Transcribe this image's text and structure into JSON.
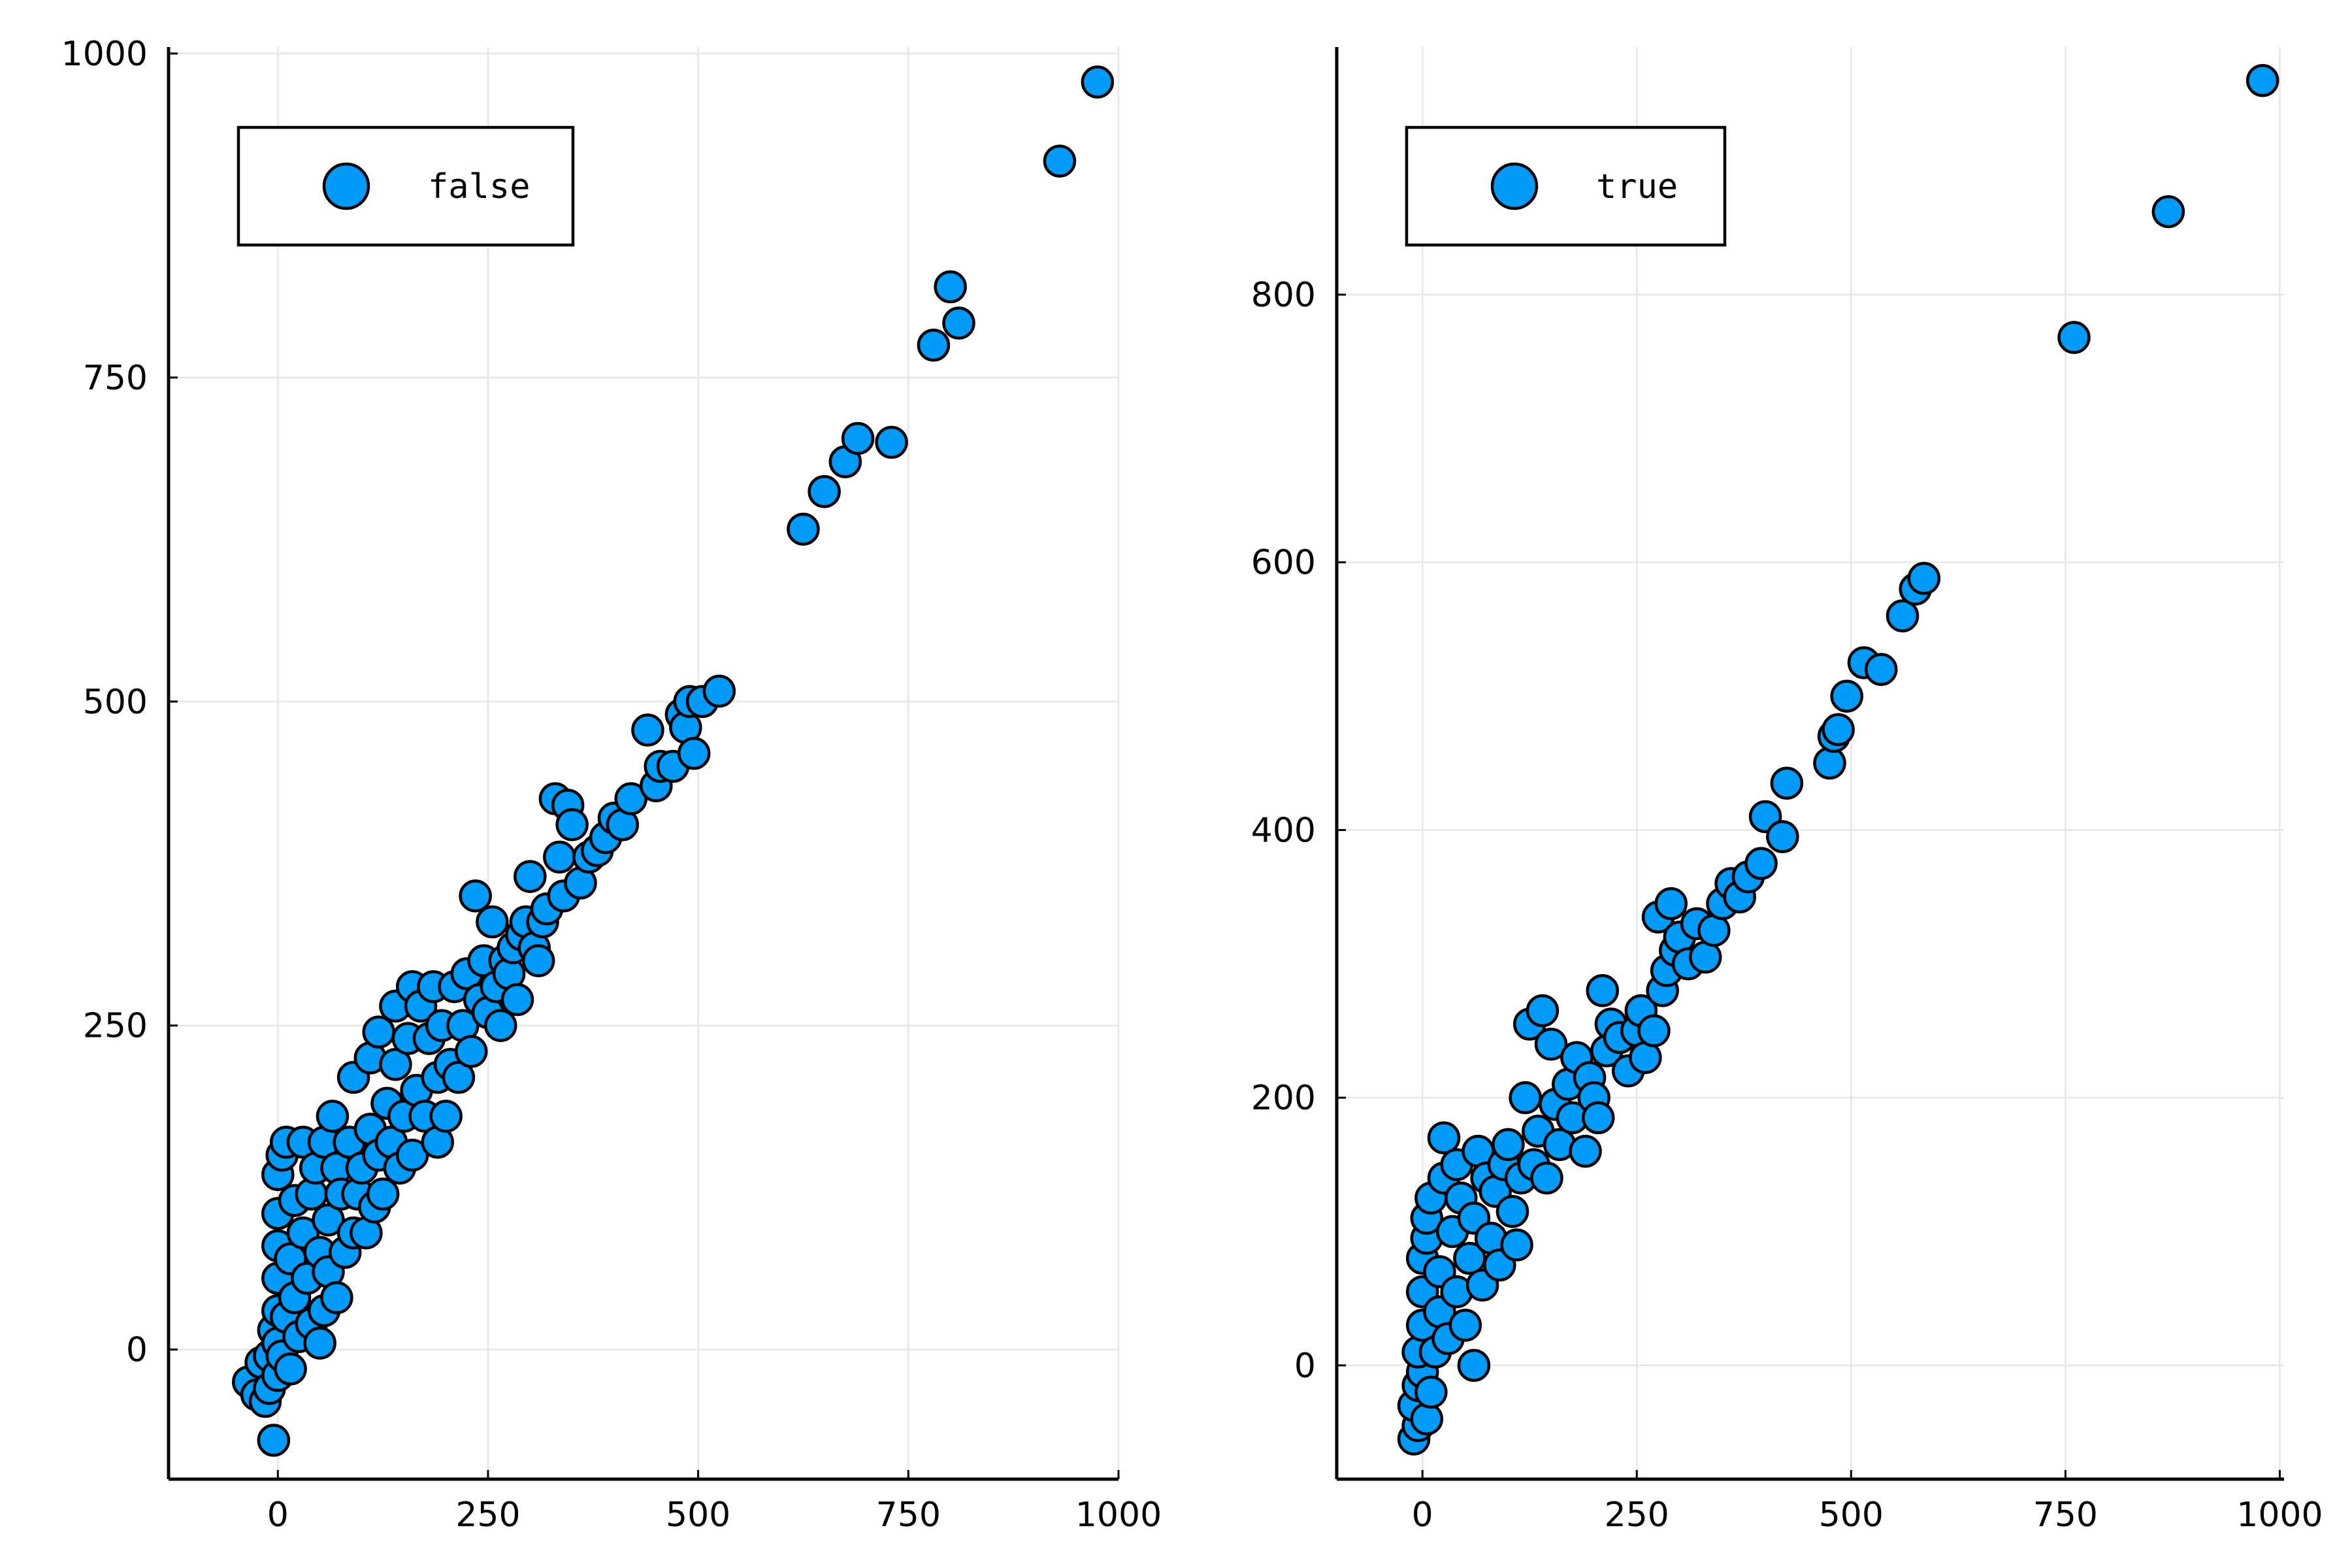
{
  "chart_data": [
    {
      "type": "scatter",
      "xlim": [
        -130,
        1000
      ],
      "ylim": [
        -100,
        1005
      ],
      "xticks": [
        0,
        250,
        500,
        750,
        1000
      ],
      "yticks": [
        0,
        250,
        500,
        750,
        1000
      ],
      "xtick_labels": [
        "0",
        "250",
        "500",
        "750",
        "1000"
      ],
      "ytick_labels": [
        "0",
        "250",
        "500",
        "750",
        "1000"
      ],
      "grid": true,
      "legend_position": "top-left",
      "series": [
        {
          "name": "false",
          "color": "#009af9",
          "points": [
            [
              -35,
              -25
            ],
            [
              -25,
              -35
            ],
            [
              -20,
              -10
            ],
            [
              -15,
              -40
            ],
            [
              -10,
              -30
            ],
            [
              -5,
              -70
            ],
            [
              -10,
              -5
            ],
            [
              -5,
              15
            ],
            [
              0,
              -20
            ],
            [
              0,
              5
            ],
            [
              0,
              30
            ],
            [
              0,
              55
            ],
            [
              0,
              80
            ],
            [
              0,
              105
            ],
            [
              0,
              135
            ],
            [
              5,
              -5
            ],
            [
              5,
              150
            ],
            [
              10,
              160
            ],
            [
              10,
              25
            ],
            [
              15,
              70
            ],
            [
              15,
              -15
            ],
            [
              20,
              40
            ],
            [
              20,
              115
            ],
            [
              25,
              10
            ],
            [
              30,
              160
            ],
            [
              30,
              90
            ],
            [
              35,
              55
            ],
            [
              40,
              20
            ],
            [
              40,
              120
            ],
            [
              45,
              140
            ],
            [
              50,
              5
            ],
            [
              50,
              75
            ],
            [
              55,
              30
            ],
            [
              55,
              160
            ],
            [
              60,
              100
            ],
            [
              60,
              60
            ],
            [
              65,
              180
            ],
            [
              70,
              40
            ],
            [
              70,
              140
            ],
            [
              75,
              120
            ],
            [
              80,
              75
            ],
            [
              85,
              160
            ],
            [
              90,
              90
            ],
            [
              90,
              210
            ],
            [
              95,
              120
            ],
            [
              100,
              140
            ],
            [
              105,
              90
            ],
            [
              110,
              170
            ],
            [
              110,
              225
            ],
            [
              115,
              110
            ],
            [
              120,
              245
            ],
            [
              120,
              150
            ],
            [
              125,
              120
            ],
            [
              130,
              190
            ],
            [
              135,
              160
            ],
            [
              140,
              220
            ],
            [
              140,
              265
            ],
            [
              145,
              140
            ],
            [
              150,
              180
            ],
            [
              155,
              240
            ],
            [
              160,
              150
            ],
            [
              160,
              280
            ],
            [
              165,
              200
            ],
            [
              170,
              265
            ],
            [
              175,
              180
            ],
            [
              180,
              240
            ],
            [
              185,
              280
            ],
            [
              190,
              210
            ],
            [
              190,
              160
            ],
            [
              195,
              250
            ],
            [
              200,
              180
            ],
            [
              205,
              220
            ],
            [
              210,
              280
            ],
            [
              215,
              210
            ],
            [
              220,
              250
            ],
            [
              225,
              290
            ],
            [
              230,
              230
            ],
            [
              235,
              350
            ],
            [
              240,
              270
            ],
            [
              245,
              300
            ],
            [
              250,
              260
            ],
            [
              255,
              330
            ],
            [
              260,
              280
            ],
            [
              265,
              250
            ],
            [
              270,
              300
            ],
            [
              275,
              290
            ],
            [
              280,
              310
            ],
            [
              285,
              270
            ],
            [
              290,
              320
            ],
            [
              295,
              330
            ],
            [
              300,
              365
            ],
            [
              305,
              310
            ],
            [
              310,
              300
            ],
            [
              315,
              330
            ],
            [
              320,
              340
            ],
            [
              330,
              425
            ],
            [
              335,
              380
            ],
            [
              340,
              350
            ],
            [
              345,
              420
            ],
            [
              350,
              405
            ],
            [
              360,
              360
            ],
            [
              370,
              380
            ],
            [
              380,
              385
            ],
            [
              390,
              395
            ],
            [
              400,
              410
            ],
            [
              410,
              405
            ],
            [
              420,
              425
            ],
            [
              440,
              478
            ],
            [
              450,
              435
            ],
            [
              455,
              450
            ],
            [
              470,
              450
            ],
            [
              480,
              490
            ],
            [
              485,
              480
            ],
            [
              490,
              500
            ],
            [
              495,
              460
            ],
            [
              505,
              500
            ],
            [
              525,
              508
            ],
            [
              625,
              633
            ],
            [
              650,
              662
            ],
            [
              675,
              685
            ],
            [
              690,
              703
            ],
            [
              730,
              700
            ],
            [
              780,
              775
            ],
            [
              800,
              820
            ],
            [
              810,
              792
            ],
            [
              930,
              917
            ],
            [
              975,
              978
            ]
          ]
        }
      ]
    },
    {
      "type": "scatter",
      "xlim": [
        -100,
        1005
      ],
      "ylim": [
        -85,
        985
      ],
      "xticks": [
        0,
        250,
        500,
        750,
        1000
      ],
      "yticks": [
        0,
        200,
        400,
        600,
        800
      ],
      "xtick_labels": [
        "0",
        "250",
        "500",
        "750",
        "1000"
      ],
      "ytick_labels": [
        "0",
        "200",
        "400",
        "600",
        "800"
      ],
      "grid": true,
      "legend_position": "top-left",
      "series": [
        {
          "name": "true",
          "color": "#009af9",
          "points": [
            [
              -10,
              -55
            ],
            [
              -5,
              -45
            ],
            [
              -10,
              -30
            ],
            [
              -5,
              -15
            ],
            [
              0,
              -5
            ],
            [
              -5,
              10
            ],
            [
              0,
              30
            ],
            [
              0,
              55
            ],
            [
              0,
              80
            ],
            [
              5,
              95
            ],
            [
              5,
              110
            ],
            [
              10,
              125
            ],
            [
              5,
              -40
            ],
            [
              10,
              -20
            ],
            [
              15,
              10
            ],
            [
              20,
              40
            ],
            [
              20,
              70
            ],
            [
              25,
              140
            ],
            [
              25,
              170
            ],
            [
              30,
              20
            ],
            [
              35,
              100
            ],
            [
              40,
              55
            ],
            [
              40,
              150
            ],
            [
              45,
              125
            ],
            [
              50,
              30
            ],
            [
              55,
              80
            ],
            [
              60,
              110
            ],
            [
              60,
              0
            ],
            [
              65,
              160
            ],
            [
              70,
              60
            ],
            [
              75,
              140
            ],
            [
              80,
              95
            ],
            [
              85,
              130
            ],
            [
              90,
              75
            ],
            [
              95,
              150
            ],
            [
              100,
              165
            ],
            [
              105,
              115
            ],
            [
              110,
              90
            ],
            [
              115,
              140
            ],
            [
              120,
              200
            ],
            [
              125,
              255
            ],
            [
              130,
              150
            ],
            [
              135,
              175
            ],
            [
              140,
              265
            ],
            [
              145,
              140
            ],
            [
              150,
              240
            ],
            [
              155,
              195
            ],
            [
              160,
              165
            ],
            [
              170,
              210
            ],
            [
              175,
              185
            ],
            [
              180,
              230
            ],
            [
              190,
              160
            ],
            [
              195,
              215
            ],
            [
              200,
              200
            ],
            [
              205,
              185
            ],
            [
              210,
              280
            ],
            [
              215,
              235
            ],
            [
              220,
              255
            ],
            [
              230,
              245
            ],
            [
              240,
              220
            ],
            [
              250,
              250
            ],
            [
              255,
              265
            ],
            [
              260,
              230
            ],
            [
              270,
              250
            ],
            [
              275,
              335
            ],
            [
              280,
              280
            ],
            [
              285,
              295
            ],
            [
              290,
              345
            ],
            [
              295,
              310
            ],
            [
              300,
              320
            ],
            [
              310,
              300
            ],
            [
              320,
              330
            ],
            [
              330,
              305
            ],
            [
              340,
              325
            ],
            [
              350,
              345
            ],
            [
              360,
              360
            ],
            [
              370,
              350
            ],
            [
              380,
              365
            ],
            [
              395,
              375
            ],
            [
              400,
              410
            ],
            [
              420,
              395
            ],
            [
              425,
              435
            ],
            [
              475,
              450
            ],
            [
              480,
              470
            ],
            [
              485,
              475
            ],
            [
              495,
              500
            ],
            [
              515,
              525
            ],
            [
              535,
              520
            ],
            [
              560,
              560
            ],
            [
              575,
              580
            ],
            [
              585,
              588
            ],
            [
              760,
              768
            ],
            [
              870,
              862
            ],
            [
              980,
              960
            ]
          ]
        }
      ]
    }
  ]
}
